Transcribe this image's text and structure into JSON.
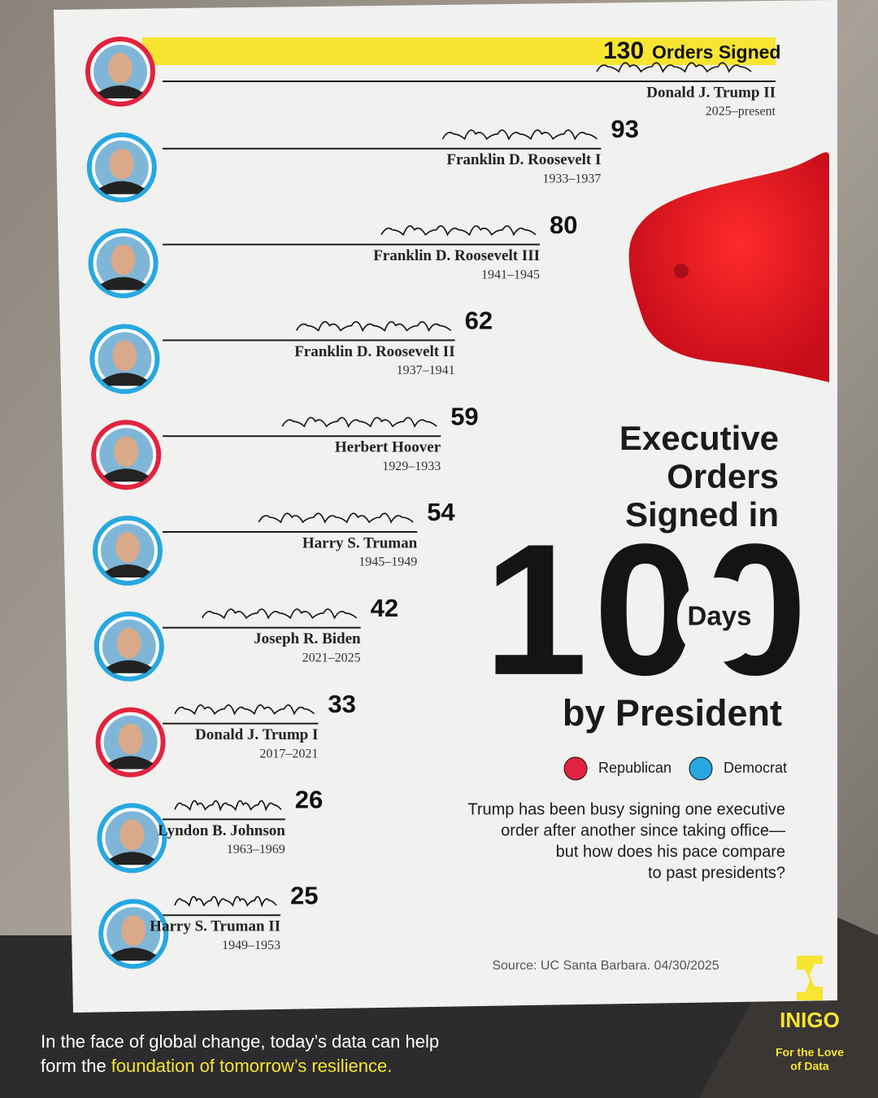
{
  "chart_data": {
    "type": "bar",
    "title_lines": [
      "Executive",
      "Orders",
      "Signed in"
    ],
    "title_number": "100",
    "title_days": "Days",
    "title_end": "by President",
    "subtitle_lines": [
      "Trump has been busy signing one executive",
      "order after another since taking office—",
      "but how does his pace compare",
      "to past presidents?"
    ],
    "categories": [
      "Donald J. Trump II",
      "Franklin D. Roosevelt I",
      "Franklin D. Roosevelt III",
      "Franklin D. Roosevelt II",
      "Herbert Hoover",
      "Harry S. Truman",
      "Joseph R. Biden",
      "Donald J. Trump I",
      "Lyndon B. Johnson",
      "Harry S. Truman II"
    ],
    "terms": [
      "2025–present",
      "1933–1937",
      "1941–1945",
      "1937–1941",
      "1929–1933",
      "1945–1949",
      "2021–2025",
      "2017–2021",
      "1963–1969",
      "1949–1953"
    ],
    "values": [
      130,
      93,
      80,
      62,
      59,
      54,
      42,
      33,
      26,
      25
    ],
    "first_value_unit": "Orders Signed",
    "colors": [
      "#e2233f",
      "#27a8e0",
      "#27a8e0",
      "#27a8e0",
      "#e2233f",
      "#27a8e0",
      "#27a8e0",
      "#e2233f",
      "#27a8e0",
      "#27a8e0"
    ],
    "highlight_color": "#f7e531",
    "legend": [
      {
        "name": "Republican",
        "color": "#e2233f"
      },
      {
        "name": "Democrat",
        "color": "#27a8e0"
      }
    ],
    "source": "Source: UC Santa Barbara. 04/30/2025",
    "footer": {
      "lines": [
        "In the face of global change, today’s data can help",
        "form the"
      ],
      "highlight": "foundation of tomorrow’s resilience."
    },
    "brand": {
      "name": "INIGO",
      "tagline": [
        "For the Love",
        "of Data"
      ]
    }
  }
}
